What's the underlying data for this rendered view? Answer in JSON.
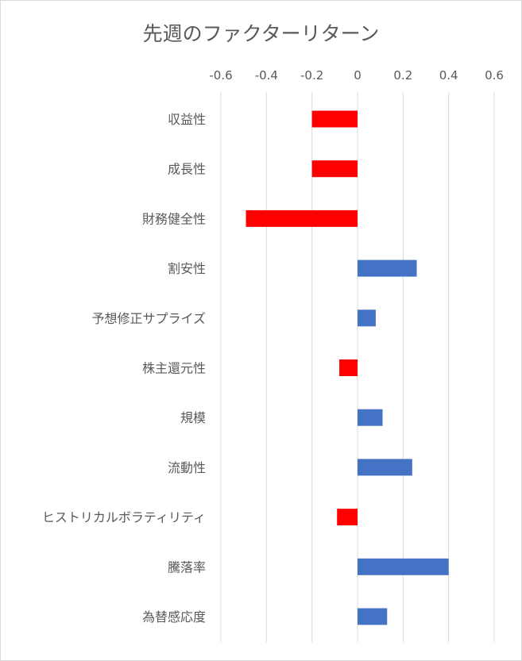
{
  "chart_data": {
    "type": "bar",
    "orientation": "horizontal",
    "title": "先週のファクターリターン",
    "xlabel": "",
    "ylabel": "",
    "xlim": [
      -0.6,
      0.6
    ],
    "ticks": [
      -0.6,
      -0.4,
      -0.2,
      0,
      0.2,
      0.4,
      0.6
    ],
    "tick_labels": [
      "-0.6",
      "-0.4",
      "-0.2",
      "0",
      "0.2",
      "0.4",
      "0.6"
    ],
    "axis_position": "top",
    "grid": true,
    "legend": "none",
    "categories": [
      "収益性",
      "成長性",
      "財務健全性",
      "割安性",
      "予想修正サプライズ",
      "株主還元性",
      "規模",
      "流動性",
      "ヒストリカルボラティリティ",
      "騰落率",
      "為替感応度"
    ],
    "values": [
      -0.2,
      -0.2,
      -0.49,
      0.26,
      0.08,
      -0.08,
      0.11,
      0.24,
      -0.09,
      0.4,
      0.13
    ],
    "colors": {
      "negative": "#ff0000",
      "positive": "#4472c4",
      "grid": "#d9d9d9",
      "text": "#595959"
    }
  }
}
